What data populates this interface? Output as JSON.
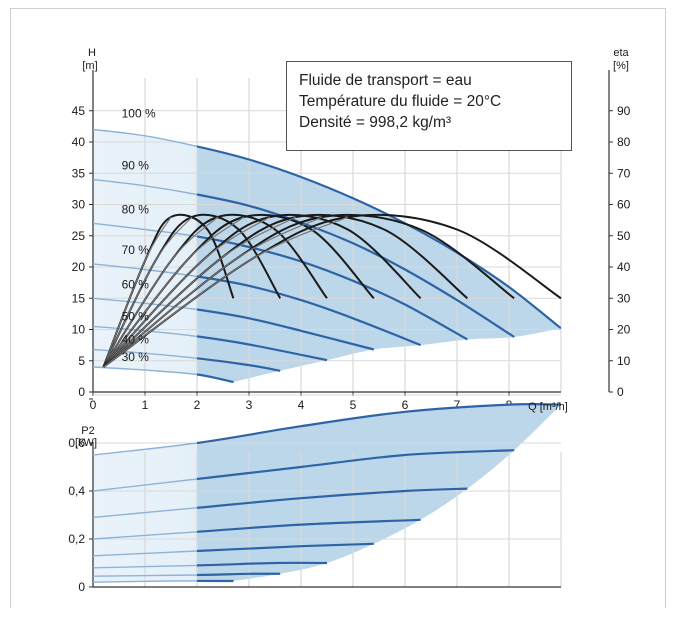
{
  "info": {
    "line1": "Fluide de transport = eau",
    "line2": "Température du fluide = 20°C",
    "line3": "Densité = 998,2 kg/m³"
  },
  "colors": {
    "curve": "#2e64a6",
    "efficiency": "#1a1a1a",
    "efficiency_light": "#777777",
    "fill": "#bcd6ea",
    "grid": "#d9d9d9"
  },
  "chart_data": [
    {
      "type": "line",
      "title": "",
      "xlabel": "Q [m³/h]",
      "ylabel": "H\n[m]",
      "y2label": "eta\n[%]",
      "xlim": [
        0,
        9
      ],
      "ylim": [
        0,
        50
      ],
      "y2lim": [
        0,
        100
      ],
      "x_ticks": [
        "0",
        "1",
        "2",
        "3",
        "4",
        "5",
        "6",
        "7",
        "8",
        "9"
      ],
      "y_ticks": [
        "0",
        "5",
        "10",
        "15",
        "20",
        "25",
        "30",
        "35",
        "40",
        "45"
      ],
      "y2_ticks": [
        "0",
        "10",
        "20",
        "30",
        "40",
        "50",
        "60",
        "70",
        "80",
        "90"
      ],
      "grid": true,
      "shaded_operating_range": true,
      "series": [
        {
          "name": "100 %",
          "x": [
            0,
            1,
            2,
            3,
            4,
            5,
            6,
            7,
            8,
            9
          ],
          "y": [
            42,
            41,
            39.3,
            37.2,
            34.4,
            31,
            27,
            22.3,
            16.8,
            10.2
          ]
        },
        {
          "name": "90 %",
          "x": [
            0,
            1,
            2,
            3,
            4,
            5,
            6,
            7,
            8.1
          ],
          "y": [
            34,
            33,
            31.6,
            29.8,
            27.1,
            23.8,
            19.6,
            14.7,
            8.8
          ]
        },
        {
          "name": "80 %",
          "x": [
            0,
            1,
            2,
            3,
            4,
            5,
            6,
            7.2
          ],
          "y": [
            27,
            26,
            24.9,
            23.2,
            20.9,
            17.8,
            14,
            8.4
          ]
        },
        {
          "name": "70 %",
          "x": [
            0,
            1,
            2,
            3,
            4,
            5,
            6.3
          ],
          "y": [
            20.5,
            19.6,
            18.5,
            17,
            14.7,
            11.8,
            7.5
          ]
        },
        {
          "name": "60 %",
          "x": [
            0,
            1,
            2,
            3,
            4,
            5.4
          ],
          "y": [
            15,
            14.2,
            13.2,
            11.8,
            9.8,
            6.8
          ]
        },
        {
          "name": "50 %",
          "x": [
            0,
            1,
            2,
            3,
            4.5
          ],
          "y": [
            10.5,
            9.8,
            8.9,
            7.6,
            5.1
          ]
        },
        {
          "name": "40 %",
          "x": [
            0,
            1,
            2,
            3,
            3.6
          ],
          "y": [
            6.8,
            6.2,
            5.4,
            4.3,
            3.4
          ]
        },
        {
          "name": "30 %",
          "x": [
            0,
            1,
            2,
            2.7
          ],
          "y": [
            4,
            3.5,
            2.8,
            1.6
          ]
        }
      ],
      "efficiency_series": [
        {
          "x": [
            0.2,
            1,
            1.5,
            2.2,
            2.7
          ],
          "eta": [
            8,
            42,
            56,
            52,
            30
          ]
        },
        {
          "x": [
            0.2,
            1.2,
            1.9,
            2.8,
            3.6
          ],
          "eta": [
            8,
            42,
            56,
            52,
            30
          ]
        },
        {
          "x": [
            0.2,
            1.5,
            2.4,
            3.5,
            4.5
          ],
          "eta": [
            8,
            42,
            56,
            52,
            30
          ]
        },
        {
          "x": [
            0.2,
            1.8,
            2.9,
            4.2,
            5.4
          ],
          "eta": [
            8,
            42,
            56,
            52,
            30
          ]
        },
        {
          "x": [
            0.2,
            2.1,
            3.4,
            4.9,
            6.3
          ],
          "eta": [
            8,
            42,
            56,
            52,
            30
          ]
        },
        {
          "x": [
            0.2,
            2.4,
            3.9,
            5.6,
            7.2
          ],
          "eta": [
            8,
            42,
            56,
            52,
            30
          ]
        },
        {
          "x": [
            0.2,
            2.7,
            4.4,
            6.3,
            8.1
          ],
          "eta": [
            8,
            42,
            56,
            52,
            30
          ]
        },
        {
          "x": [
            0.2,
            3,
            4.9,
            7,
            9
          ],
          "eta": [
            8,
            42,
            56,
            52,
            30
          ]
        }
      ]
    },
    {
      "type": "line",
      "title": "",
      "xlabel": "",
      "ylabel": "P2\n[kW]",
      "xlim": [
        0,
        9
      ],
      "ylim": [
        0,
        0.8
      ],
      "y_ticks": [
        "0",
        "0,2",
        "0,4",
        "0,6"
      ],
      "grid": true,
      "shaded_operating_range": true,
      "series": [
        {
          "x": [
            0,
            2,
            4,
            6,
            8,
            9
          ],
          "y": [
            0.55,
            0.6,
            0.67,
            0.73,
            0.76,
            0.76
          ]
        },
        {
          "x": [
            0,
            2,
            4,
            6,
            8.1
          ],
          "y": [
            0.4,
            0.45,
            0.5,
            0.55,
            0.57
          ]
        },
        {
          "x": [
            0,
            2,
            4,
            6,
            7.2
          ],
          "y": [
            0.29,
            0.33,
            0.37,
            0.4,
            0.41
          ]
        },
        {
          "x": [
            0,
            2,
            4,
            6.3
          ],
          "y": [
            0.2,
            0.23,
            0.26,
            0.28
          ]
        },
        {
          "x": [
            0,
            2,
            4,
            5.4
          ],
          "y": [
            0.13,
            0.15,
            0.17,
            0.18
          ]
        },
        {
          "x": [
            0,
            2,
            3.5,
            4.5
          ],
          "y": [
            0.08,
            0.09,
            0.1,
            0.1
          ]
        },
        {
          "x": [
            0,
            2,
            3,
            3.6
          ],
          "y": [
            0.045,
            0.05,
            0.055,
            0.055
          ]
        },
        {
          "x": [
            0,
            1.5,
            2.7
          ],
          "y": [
            0.02,
            0.025,
            0.025
          ]
        }
      ]
    }
  ]
}
